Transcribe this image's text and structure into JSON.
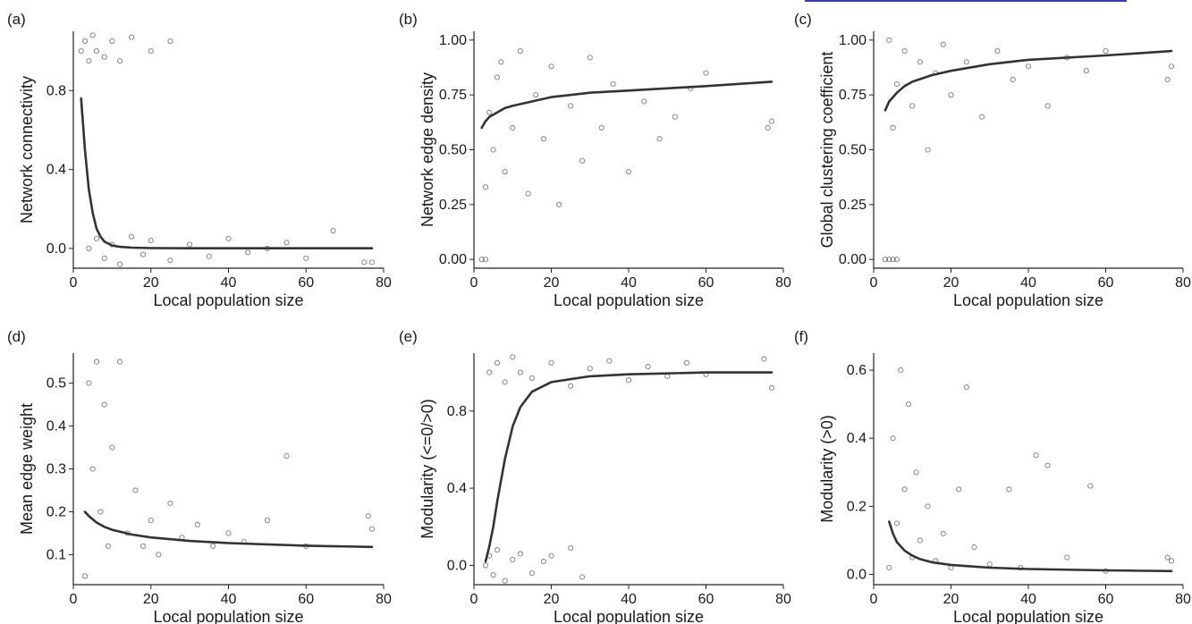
{
  "chart_data": [
    {
      "panel_label": "(a)",
      "type": "scatter",
      "xlabel": "Local population size",
      "ylabel": "Network connectivity",
      "xlim": [
        0,
        80
      ],
      "ylim": [
        -0.1,
        1.1
      ],
      "xticks": [
        "0",
        "20",
        "40",
        "60",
        "80"
      ],
      "xtick_values": [
        0,
        20,
        40,
        60,
        80
      ],
      "yticks": [
        "0.0",
        "0.4",
        "0.8"
      ],
      "ytick_values": [
        0.0,
        0.4,
        0.8
      ],
      "grid": false,
      "fit_curve": {
        "x": [
          2,
          3,
          4,
          5,
          6,
          7,
          8,
          10,
          12,
          15,
          20,
          30,
          40,
          60,
          77
        ],
        "y": [
          0.76,
          0.5,
          0.3,
          0.18,
          0.1,
          0.06,
          0.035,
          0.015,
          0.008,
          0.004,
          0.002,
          0.001,
          0.001,
          0.001,
          0.001
        ]
      },
      "points": [
        [
          2,
          1.0
        ],
        [
          3,
          1.05
        ],
        [
          4,
          0.95
        ],
        [
          5,
          1.08
        ],
        [
          6,
          1.0
        ],
        [
          8,
          0.97
        ],
        [
          10,
          1.05
        ],
        [
          12,
          0.95
        ],
        [
          15,
          1.07
        ],
        [
          20,
          1.0
        ],
        [
          25,
          1.05
        ],
        [
          4,
          0.0
        ],
        [
          6,
          0.05
        ],
        [
          8,
          -0.05
        ],
        [
          10,
          0.02
        ],
        [
          12,
          -0.08
        ],
        [
          15,
          0.06
        ],
        [
          18,
          -0.03
        ],
        [
          20,
          0.04
        ],
        [
          25,
          -0.06
        ],
        [
          30,
          0.02
        ],
        [
          35,
          -0.04
        ],
        [
          40,
          0.05
        ],
        [
          45,
          -0.02
        ],
        [
          50,
          0.0
        ],
        [
          55,
          0.03
        ],
        [
          60,
          -0.05
        ],
        [
          67,
          0.09
        ],
        [
          75,
          -0.07
        ],
        [
          77,
          -0.07
        ]
      ]
    },
    {
      "panel_label": "(b)",
      "type": "scatter",
      "xlabel": "Local population size",
      "ylabel": "Network edge density",
      "xlim": [
        0,
        80
      ],
      "ylim": [
        -0.04,
        1.04
      ],
      "xticks": [
        "0",
        "20",
        "40",
        "60",
        "80"
      ],
      "xtick_values": [
        0,
        20,
        40,
        60,
        80
      ],
      "yticks": [
        "0.00",
        "0.25",
        "0.50",
        "0.75",
        "1.00"
      ],
      "ytick_values": [
        0,
        0.25,
        0.5,
        0.75,
        1.0
      ],
      "grid": false,
      "fit_curve": {
        "x": [
          2,
          3,
          4,
          6,
          8,
          10,
          15,
          20,
          30,
          40,
          60,
          77
        ],
        "y": [
          0.6,
          0.63,
          0.65,
          0.67,
          0.69,
          0.7,
          0.72,
          0.74,
          0.76,
          0.77,
          0.79,
          0.81
        ]
      },
      "points": [
        [
          2,
          0.0
        ],
        [
          3,
          0.0
        ],
        [
          3,
          0.33
        ],
        [
          4,
          0.67
        ],
        [
          5,
          0.5
        ],
        [
          6,
          0.83
        ],
        [
          7,
          0.9
        ],
        [
          8,
          0.4
        ],
        [
          10,
          0.6
        ],
        [
          12,
          0.95
        ],
        [
          14,
          0.3
        ],
        [
          16,
          0.75
        ],
        [
          18,
          0.55
        ],
        [
          20,
          0.88
        ],
        [
          22,
          0.25
        ],
        [
          25,
          0.7
        ],
        [
          28,
          0.45
        ],
        [
          30,
          0.92
        ],
        [
          33,
          0.6
        ],
        [
          36,
          0.8
        ],
        [
          40,
          0.4
        ],
        [
          44,
          0.72
        ],
        [
          48,
          0.55
        ],
        [
          52,
          0.65
        ],
        [
          56,
          0.78
        ],
        [
          60,
          0.85
        ],
        [
          76,
          0.6
        ],
        [
          77,
          0.63
        ]
      ]
    },
    {
      "panel_label": "(c)",
      "type": "scatter",
      "xlabel": "Local population size",
      "ylabel": "Global clustering coefficient",
      "xlim": [
        0,
        80
      ],
      "ylim": [
        -0.04,
        1.04
      ],
      "xticks": [
        "0",
        "20",
        "40",
        "60",
        "80"
      ],
      "xtick_values": [
        0,
        20,
        40,
        60,
        80
      ],
      "yticks": [
        "0.00",
        "0.25",
        "0.50",
        "0.75",
        "1.00"
      ],
      "ytick_values": [
        0,
        0.25,
        0.5,
        0.75,
        1.0
      ],
      "grid": false,
      "fit_curve": {
        "x": [
          3,
          4,
          6,
          8,
          10,
          15,
          20,
          30,
          40,
          60,
          77
        ],
        "y": [
          0.68,
          0.72,
          0.76,
          0.79,
          0.81,
          0.84,
          0.86,
          0.89,
          0.91,
          0.93,
          0.95
        ]
      },
      "points": [
        [
          3,
          0.0
        ],
        [
          4,
          0.0
        ],
        [
          5,
          0.0
        ],
        [
          6,
          0.0
        ],
        [
          4,
          1.0
        ],
        [
          5,
          0.6
        ],
        [
          6,
          0.8
        ],
        [
          8,
          0.95
        ],
        [
          10,
          0.7
        ],
        [
          12,
          0.9
        ],
        [
          14,
          0.5
        ],
        [
          16,
          0.85
        ],
        [
          18,
          0.98
        ],
        [
          20,
          0.75
        ],
        [
          24,
          0.9
        ],
        [
          28,
          0.65
        ],
        [
          32,
          0.95
        ],
        [
          36,
          0.82
        ],
        [
          40,
          0.88
        ],
        [
          45,
          0.7
        ],
        [
          50,
          0.92
        ],
        [
          55,
          0.86
        ],
        [
          60,
          0.95
        ],
        [
          76,
          0.82
        ],
        [
          77,
          0.88
        ]
      ]
    },
    {
      "panel_label": "(d)",
      "type": "scatter",
      "xlabel": "Local population size",
      "ylabel": "Mean edge weight",
      "xlim": [
        0,
        80
      ],
      "ylim": [
        0.03,
        0.57
      ],
      "xticks": [
        "0",
        "20",
        "40",
        "60",
        "80"
      ],
      "xtick_values": [
        0,
        20,
        40,
        60,
        80
      ],
      "yticks": [
        "0.1",
        "0.2",
        "0.3",
        "0.4",
        "0.5"
      ],
      "ytick_values": [
        0.1,
        0.2,
        0.3,
        0.4,
        0.5
      ],
      "grid": false,
      "fit_curve": {
        "x": [
          3,
          4,
          6,
          8,
          10,
          15,
          20,
          30,
          40,
          60,
          77
        ],
        "y": [
          0.2,
          0.19,
          0.175,
          0.165,
          0.158,
          0.147,
          0.14,
          0.132,
          0.127,
          0.121,
          0.118
        ]
      },
      "points": [
        [
          3,
          0.05
        ],
        [
          4,
          0.5
        ],
        [
          5,
          0.3
        ],
        [
          6,
          0.55
        ],
        [
          7,
          0.2
        ],
        [
          8,
          0.45
        ],
        [
          9,
          0.12
        ],
        [
          10,
          0.35
        ],
        [
          12,
          0.55
        ],
        [
          14,
          0.15
        ],
        [
          16,
          0.25
        ],
        [
          18,
          0.12
        ],
        [
          20,
          0.18
        ],
        [
          22,
          0.1
        ],
        [
          25,
          0.22
        ],
        [
          28,
          0.14
        ],
        [
          32,
          0.17
        ],
        [
          36,
          0.12
        ],
        [
          40,
          0.15
        ],
        [
          44,
          0.13
        ],
        [
          50,
          0.18
        ],
        [
          55,
          0.33
        ],
        [
          60,
          0.12
        ],
        [
          76,
          0.19
        ],
        [
          77,
          0.16
        ]
      ]
    },
    {
      "panel_label": "(e)",
      "type": "scatter",
      "xlabel": "Local population size",
      "ylabel": "Modularity (<=0/>0)",
      "xlim": [
        0,
        80
      ],
      "ylim": [
        -0.1,
        1.1
      ],
      "xticks": [
        "0",
        "20",
        "40",
        "60",
        "80"
      ],
      "xtick_values": [
        0,
        20,
        40,
        60,
        80
      ],
      "yticks": [
        "0.0",
        "0.4",
        "0.8"
      ],
      "ytick_values": [
        0.0,
        0.4,
        0.8
      ],
      "grid": false,
      "fit_curve": {
        "x": [
          3,
          4,
          5,
          6,
          8,
          10,
          12,
          15,
          20,
          30,
          40,
          60,
          77
        ],
        "y": [
          0.02,
          0.1,
          0.2,
          0.33,
          0.55,
          0.72,
          0.82,
          0.9,
          0.95,
          0.98,
          0.99,
          1.0,
          1.0
        ]
      },
      "points": [
        [
          3,
          0.0
        ],
        [
          4,
          0.05
        ],
        [
          5,
          -0.05
        ],
        [
          6,
          0.08
        ],
        [
          8,
          -0.08
        ],
        [
          10,
          0.03
        ],
        [
          12,
          0.06
        ],
        [
          15,
          -0.04
        ],
        [
          18,
          0.02
        ],
        [
          20,
          0.05
        ],
        [
          25,
          0.09
        ],
        [
          28,
          -0.06
        ],
        [
          4,
          1.0
        ],
        [
          6,
          1.05
        ],
        [
          8,
          0.95
        ],
        [
          10,
          1.08
        ],
        [
          12,
          1.0
        ],
        [
          15,
          0.97
        ],
        [
          20,
          1.05
        ],
        [
          25,
          0.93
        ],
        [
          30,
          1.02
        ],
        [
          35,
          1.06
        ],
        [
          40,
          0.96
        ],
        [
          45,
          1.03
        ],
        [
          50,
          0.98
        ],
        [
          55,
          1.05
        ],
        [
          60,
          0.99
        ],
        [
          75,
          1.07
        ],
        [
          77,
          0.92
        ]
      ]
    },
    {
      "panel_label": "(f)",
      "type": "scatter",
      "xlabel": "Local population size",
      "ylabel": "Modularity (>0)",
      "xlim": [
        0,
        80
      ],
      "ylim": [
        -0.03,
        0.65
      ],
      "xticks": [
        "0",
        "20",
        "40",
        "60",
        "80"
      ],
      "xtick_values": [
        0,
        20,
        40,
        60,
        80
      ],
      "yticks": [
        "0.0",
        "0.2",
        "0.4",
        "0.6"
      ],
      "ytick_values": [
        0.0,
        0.2,
        0.4,
        0.6
      ],
      "grid": false,
      "fit_curve": {
        "x": [
          4,
          5,
          6,
          8,
          10,
          12,
          15,
          20,
          30,
          40,
          60,
          77
        ],
        "y": [
          0.155,
          0.12,
          0.095,
          0.07,
          0.055,
          0.045,
          0.036,
          0.028,
          0.02,
          0.016,
          0.012,
          0.01
        ]
      },
      "points": [
        [
          4,
          0.02
        ],
        [
          5,
          0.4
        ],
        [
          6,
          0.15
        ],
        [
          7,
          0.6
        ],
        [
          8,
          0.25
        ],
        [
          9,
          0.5
        ],
        [
          10,
          0.05
        ],
        [
          11,
          0.3
        ],
        [
          12,
          0.1
        ],
        [
          14,
          0.2
        ],
        [
          16,
          0.04
        ],
        [
          18,
          0.12
        ],
        [
          20,
          0.02
        ],
        [
          22,
          0.25
        ],
        [
          24,
          0.55
        ],
        [
          26,
          0.08
        ],
        [
          30,
          0.03
        ],
        [
          35,
          0.25
        ],
        [
          38,
          0.02
        ],
        [
          42,
          0.35
        ],
        [
          45,
          0.32
        ],
        [
          50,
          0.05
        ],
        [
          56,
          0.26
        ],
        [
          60,
          0.01
        ],
        [
          76,
          0.05
        ],
        [
          77,
          0.04
        ]
      ]
    }
  ]
}
